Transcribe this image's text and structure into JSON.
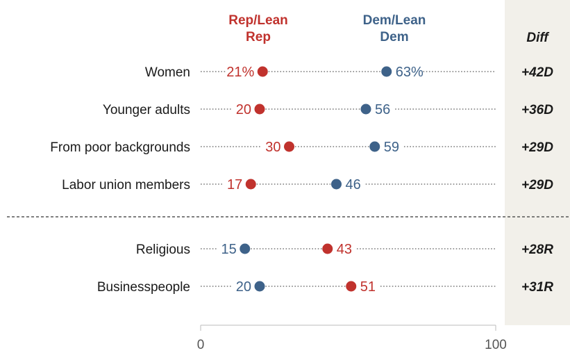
{
  "chart_data": {
    "type": "dot",
    "x_range": [
      0,
      100
    ],
    "x_ticks": [
      "0",
      "100"
    ],
    "legend": {
      "rep": [
        "Rep/Lean",
        "Rep"
      ],
      "dem": [
        "Dem/Lean",
        "Dem"
      ]
    },
    "diff_header": "Diff",
    "colors": {
      "rep": "#c0322d",
      "dem": "#3e6289",
      "diff_bg": "#f2f0ea"
    },
    "rows": [
      {
        "category": "Women",
        "rep": 21,
        "dem": 63,
        "rep_label": "21%",
        "dem_label": "63%",
        "diff": "+42D",
        "group": 1
      },
      {
        "category": "Younger adults",
        "rep": 20,
        "dem": 56,
        "rep_label": "20",
        "dem_label": "56",
        "diff": "+36D",
        "group": 1
      },
      {
        "category": "From poor backgrounds",
        "rep": 30,
        "dem": 59,
        "rep_label": "30",
        "dem_label": "59",
        "diff": "+29D",
        "group": 1
      },
      {
        "category": "Labor union members",
        "rep": 17,
        "dem": 46,
        "rep_label": "17",
        "dem_label": "46",
        "diff": "+29D",
        "group": 1
      },
      {
        "category": "Religious",
        "rep": 43,
        "dem": 15,
        "rep_label": "43",
        "dem_label": "15",
        "diff": "+28R",
        "group": 2
      },
      {
        "category": "Businesspeople",
        "rep": 51,
        "dem": 20,
        "rep_label": "51",
        "dem_label": "20",
        "diff": "+31R",
        "group": 2
      }
    ]
  }
}
